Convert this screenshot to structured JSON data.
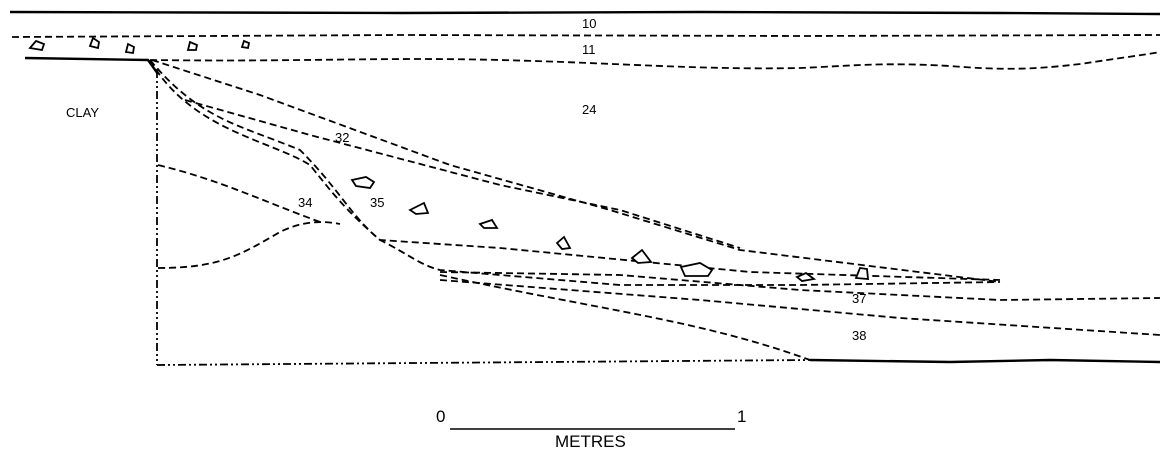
{
  "section": {
    "clay_label": "CLAY",
    "layers": [
      "10",
      "11",
      "24",
      "32",
      "34",
      "35",
      "37",
      "38"
    ]
  },
  "scale": {
    "start": "0",
    "end": "1",
    "unit": "METRES"
  }
}
